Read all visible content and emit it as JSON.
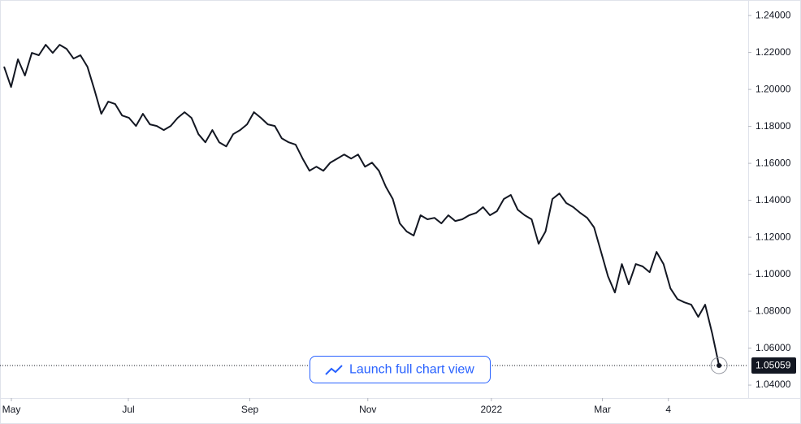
{
  "chart_data": {
    "type": "line",
    "button": "Launch full chart view",
    "color": "#131722",
    "values": [
      1.2123,
      1.2013,
      1.2163,
      1.2075,
      1.2198,
      1.2185,
      1.2242,
      1.2198,
      1.2242,
      1.222,
      1.2167,
      1.2185,
      1.2123,
      1.2,
      1.1868,
      1.1934,
      1.1921,
      1.1859,
      1.1846,
      1.1802,
      1.1868,
      1.1811,
      1.1802,
      1.178,
      1.1802,
      1.1846,
      1.1877,
      1.1846,
      1.1758,
      1.1714,
      1.178,
      1.1714,
      1.1692,
      1.1758,
      1.178,
      1.1811,
      1.1877,
      1.1846,
      1.1811,
      1.1802,
      1.1736,
      1.1714,
      1.1701,
      1.1626,
      1.156,
      1.1582,
      1.156,
      1.1604,
      1.1626,
      1.1648,
      1.1626,
      1.1648,
      1.1582,
      1.1604,
      1.156,
      1.1473,
      1.1407,
      1.1275,
      1.1231,
      1.1209,
      1.1319,
      1.1297,
      1.1305,
      1.1275,
      1.1319,
      1.1288,
      1.1297,
      1.1319,
      1.1332,
      1.1363,
      1.1319,
      1.1341,
      1.1407,
      1.1429,
      1.1349,
      1.1319,
      1.1297,
      1.1165,
      1.1231,
      1.1407,
      1.1437,
      1.1385,
      1.1363,
      1.1332,
      1.1305,
      1.1253,
      1.1121,
      1.0989,
      1.0901,
      1.1055,
      1.0945,
      1.1055,
      1.1042,
      1.1011,
      1.1121,
      1.1055,
      1.0923,
      1.0866,
      1.0848,
      1.0835,
      1.0769,
      1.0835,
      1.0681,
      1.05059
    ],
    "xlim": [
      -0.59,
      107.2
    ],
    "xticks": [
      {
        "value": 1.05,
        "label": "May"
      },
      {
        "value": 17.9,
        "label": "Jul"
      },
      {
        "value": 35.4,
        "label": "Sep"
      },
      {
        "value": 52.4,
        "label": "Nov"
      },
      {
        "value": 70.2,
        "label": "2022"
      },
      {
        "value": 86.2,
        "label": "Mar"
      },
      {
        "value": 95.7,
        "label": "4"
      }
    ],
    "ylim": [
      1.033,
      1.2484
    ],
    "yticks": [
      {
        "value": 1.04,
        "label": "1.04000"
      },
      {
        "value": 1.06,
        "label": "1.06000"
      },
      {
        "value": 1.08,
        "label": "1.08000"
      },
      {
        "value": 1.1,
        "label": "1.10000"
      },
      {
        "value": 1.12,
        "label": "1.12000"
      },
      {
        "value": 1.14,
        "label": "1.14000"
      },
      {
        "value": 1.16,
        "label": "1.16000"
      },
      {
        "value": 1.18,
        "label": "1.18000"
      },
      {
        "value": 1.2,
        "label": "1.20000"
      },
      {
        "value": 1.22,
        "label": "1.22000"
      },
      {
        "value": 1.24,
        "label": "1.24000"
      }
    ]
  }
}
